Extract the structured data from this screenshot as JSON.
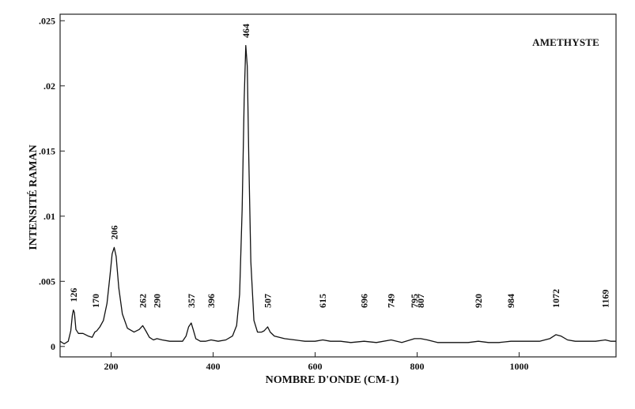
{
  "chart_data": {
    "type": "line",
    "xlabel": "NOMBRE D'ONDE (CM-1)",
    "ylabel": "INTENSITÉ RAMAN",
    "legend": "AMETHYSTE",
    "legend_position": "top-right",
    "xlim": [
      100,
      1190
    ],
    "ylim": [
      -0.0008,
      0.0255
    ],
    "grid": false,
    "x_ticks": [
      {
        "value": 200,
        "label": "200"
      },
      {
        "value": 400,
        "label": "400"
      },
      {
        "value": 600,
        "label": "600"
      },
      {
        "value": 800,
        "label": "800"
      },
      {
        "value": 1000,
        "label": "1000"
      }
    ],
    "y_ticks": [
      {
        "value": 0,
        "label": "0"
      },
      {
        "value": 0.005,
        "label": ".005"
      },
      {
        "value": 0.01,
        "label": ".01"
      },
      {
        "value": 0.015,
        "label": ".015"
      },
      {
        "value": 0.02,
        "label": ".02"
      },
      {
        "value": 0.025,
        "label": ".025"
      }
    ],
    "peak_labels": [
      {
        "x": 126,
        "label": "126"
      },
      {
        "x": 170,
        "label": "170"
      },
      {
        "x": 206,
        "label": "206"
      },
      {
        "x": 262,
        "label": "262"
      },
      {
        "x": 290,
        "label": "290"
      },
      {
        "x": 357,
        "label": "357"
      },
      {
        "x": 396,
        "label": "396"
      },
      {
        "x": 464,
        "label": "464"
      },
      {
        "x": 507,
        "label": "507"
      },
      {
        "x": 615,
        "label": "615"
      },
      {
        "x": 696,
        "label": "696"
      },
      {
        "x": 749,
        "label": "749"
      },
      {
        "x": 795,
        "label": "795"
      },
      {
        "x": 807,
        "label": "807"
      },
      {
        "x": 920,
        "label": "920"
      },
      {
        "x": 984,
        "label": "984"
      },
      {
        "x": 1072,
        "label": "1072"
      },
      {
        "x": 1169,
        "label": "1169"
      }
    ],
    "series": [
      {
        "x": [
          100,
          108,
          116,
          121,
          124,
          126,
          128,
          131,
          136,
          145,
          155,
          163,
          168,
          172,
          178,
          185,
          192,
          198,
          202,
          206,
          210,
          215,
          222,
          232,
          245,
          255,
          262,
          268,
          275,
          283,
          290,
          300,
          315,
          330,
          340,
          347,
          352,
          357,
          361,
          366,
          375,
          385,
          396,
          410,
          425,
          438,
          446,
          452,
          457,
          461,
          464,
          467,
          470,
          474,
          480,
          487,
          495,
          500,
          507,
          512,
          520,
          540,
          560,
          580,
          600,
          615,
          630,
          650,
          670,
          696,
          720,
          749,
          770,
          795,
          807,
          820,
          840,
          860,
          880,
          900,
          920,
          940,
          960,
          984,
          1010,
          1040,
          1060,
          1072,
          1082,
          1095,
          1110,
          1130,
          1150,
          1169,
          1180,
          1190
        ],
        "y": [
          0.0004,
          0.0002,
          0.0004,
          0.0012,
          0.0024,
          0.0028,
          0.0026,
          0.0013,
          0.001,
          0.001,
          0.0008,
          0.0007,
          0.0011,
          0.0012,
          0.0015,
          0.002,
          0.0033,
          0.0055,
          0.0071,
          0.0076,
          0.0069,
          0.0045,
          0.0025,
          0.0014,
          0.0011,
          0.0013,
          0.0016,
          0.0012,
          0.0007,
          0.0005,
          0.0006,
          0.0005,
          0.0004,
          0.0004,
          0.0004,
          0.0008,
          0.0015,
          0.0018,
          0.0013,
          0.0006,
          0.0004,
          0.0004,
          0.0005,
          0.0004,
          0.0005,
          0.0008,
          0.0016,
          0.004,
          0.0105,
          0.019,
          0.0231,
          0.0215,
          0.0145,
          0.0065,
          0.002,
          0.0011,
          0.0011,
          0.0012,
          0.0015,
          0.0011,
          0.0008,
          0.0006,
          0.0005,
          0.0004,
          0.0004,
          0.0005,
          0.0004,
          0.0004,
          0.0003,
          0.0004,
          0.0003,
          0.0005,
          0.0003,
          0.0006,
          0.0006,
          0.0005,
          0.0003,
          0.0003,
          0.0003,
          0.0003,
          0.0004,
          0.0003,
          0.0003,
          0.0004,
          0.0004,
          0.0004,
          0.0006,
          0.0009,
          0.0008,
          0.0005,
          0.0004,
          0.0004,
          0.0004,
          0.0005,
          0.0004,
          0.0004
        ]
      }
    ]
  }
}
